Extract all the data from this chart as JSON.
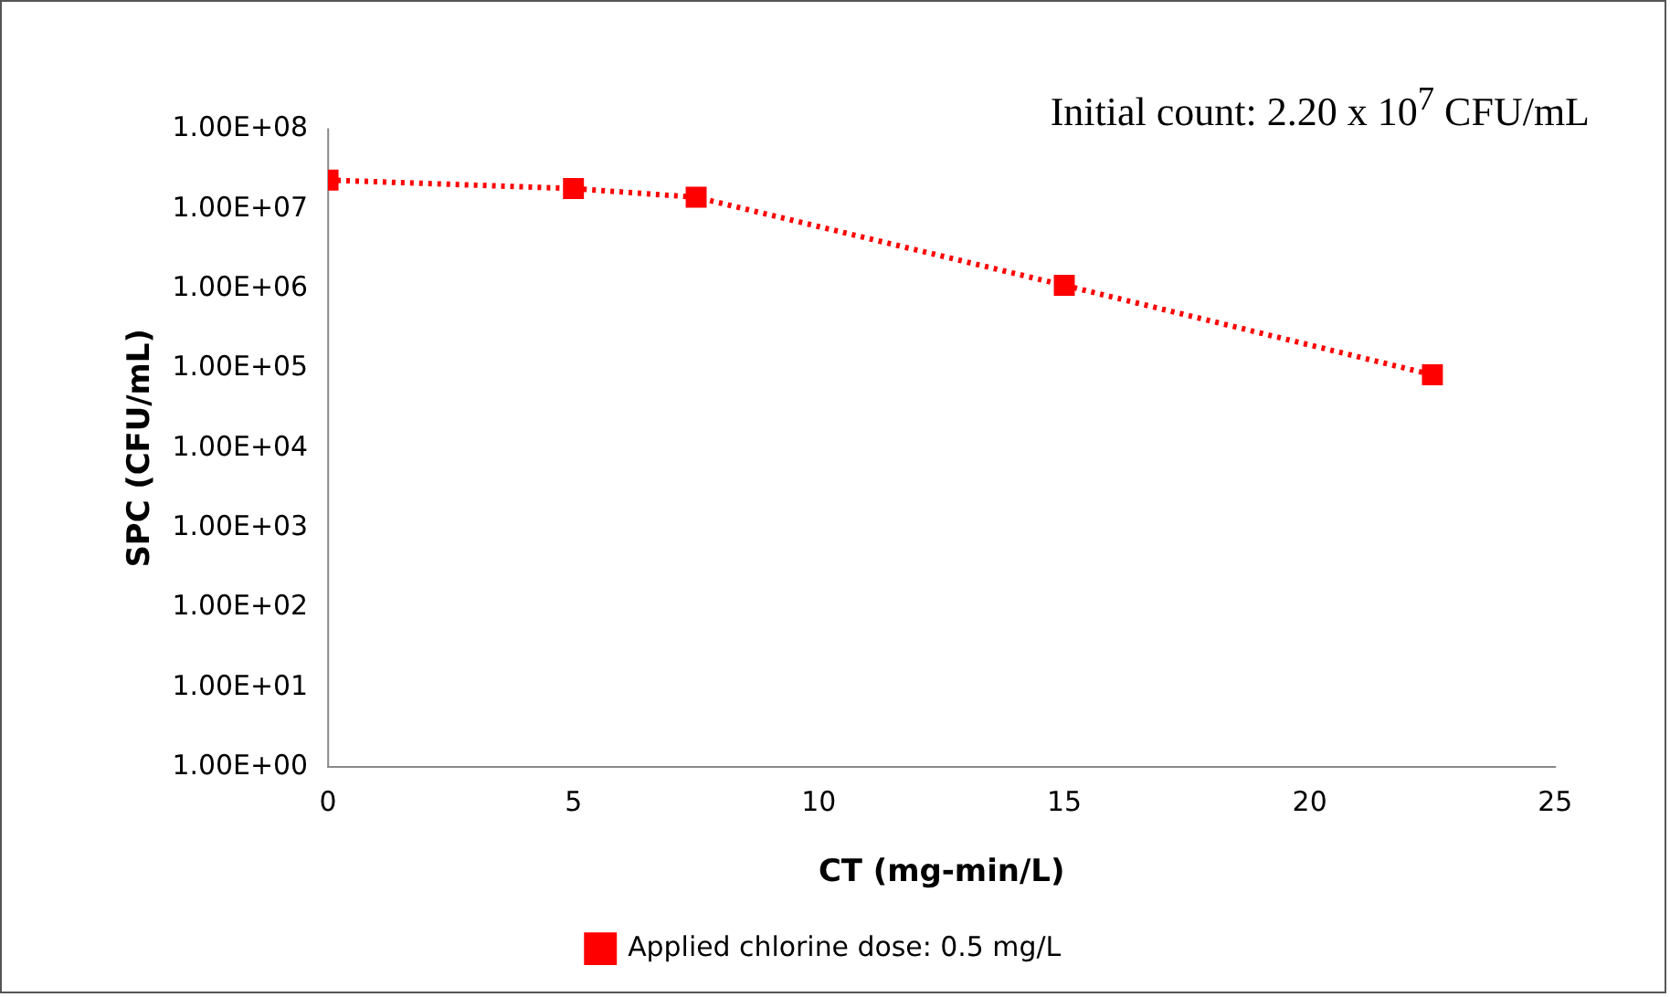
{
  "chart_data": {
    "type": "line",
    "xlabel": "CT (mg-min/L)",
    "ylabel": "SPC (CFU/mL)",
    "annotations": [
      "Initial count: 2.20 x 10$^{7}$ CFU/mL"
    ],
    "x": [
      0,
      5,
      7.5,
      15,
      22.5
    ],
    "series": [
      {
        "name": "Applied chlorine dose: 0.5 mg/L",
        "color": "#ff0000",
        "values": [
          23000000,
          18000000,
          14000000,
          1100000,
          83000
        ]
      }
    ],
    "xlim": [
      0,
      25
    ],
    "xticks": [
      0,
      5,
      10,
      15,
      20,
      25
    ],
    "ylim": [
      1,
      100000000
    ],
    "yticks": [
      {
        "value": 1,
        "label": "1.00E+00"
      },
      {
        "value": 10,
        "label": "1.00E+01"
      },
      {
        "value": 100,
        "label": "1.00E+02"
      },
      {
        "value": 1000,
        "label": "1.00E+03"
      },
      {
        "value": 10000,
        "label": "1.00E+04"
      },
      {
        "value": 100000,
        "label": "1.00E+05"
      },
      {
        "value": 1000000,
        "label": "1.00E+06"
      },
      {
        "value": 10000000,
        "label": "1.00E+07"
      },
      {
        "value": 100000000,
        "label": "1.00E+08"
      }
    ],
    "log": "y",
    "grid": false,
    "legend": "bottom",
    "marker": "square",
    "line_style": "dotted"
  }
}
